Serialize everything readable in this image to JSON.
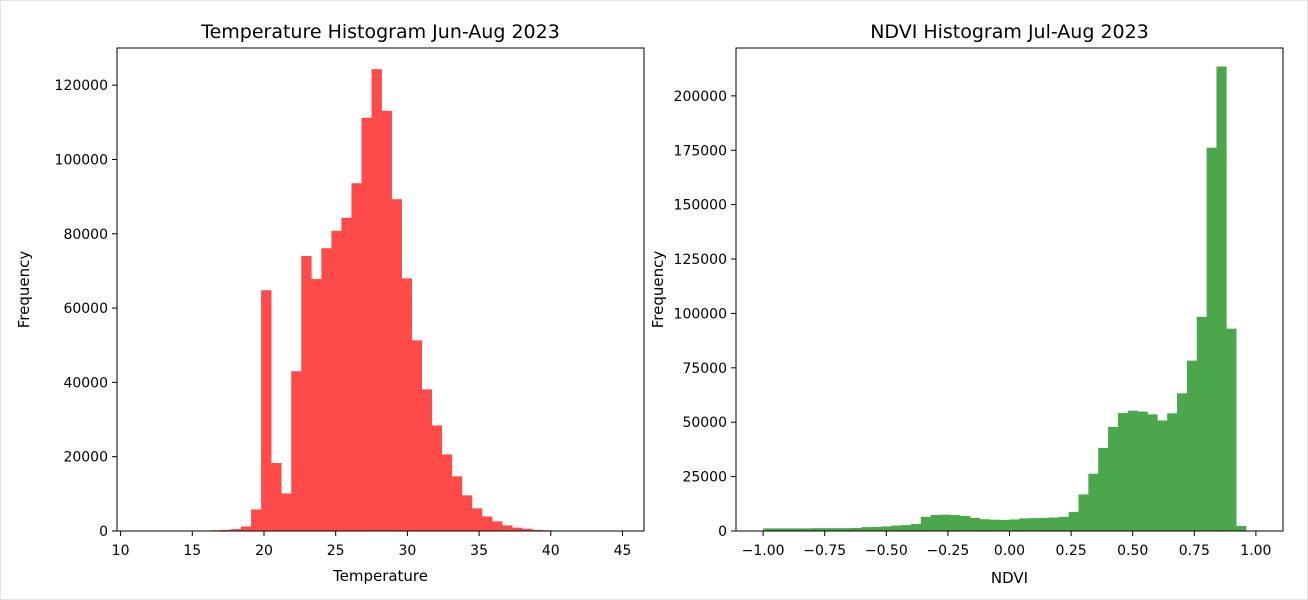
{
  "chart_data": [
    {
      "type": "bar",
      "title": "Temperature Histogram Jun-Aug 2023",
      "xlabel": "Temperature",
      "ylabel": "Frequency",
      "xlim": [
        9.75,
        46.5
      ],
      "ylim": [
        0,
        130000
      ],
      "xticks": [
        10,
        15,
        20,
        25,
        30,
        35,
        40,
        45
      ],
      "yticks": [
        0,
        20000,
        40000,
        60000,
        80000,
        100000,
        120000
      ],
      "color": "#ff4a4a",
      "bin_edges": [
        10.0,
        10.7,
        11.4,
        12.1,
        12.8,
        13.5,
        14.2,
        14.9,
        15.6,
        16.3,
        17.0,
        17.7,
        18.4,
        19.1,
        19.8,
        20.5,
        21.2,
        21.9,
        22.6,
        23.3,
        24.0,
        24.7,
        25.4,
        26.1,
        26.8,
        27.5,
        28.2,
        28.9,
        29.6,
        30.3,
        31.0,
        31.7,
        32.4,
        33.1,
        33.8,
        34.5,
        35.2,
        35.9,
        36.6,
        37.3,
        38.0,
        38.7,
        39.4,
        40.1,
        40.8,
        41.5,
        42.2,
        42.9,
        43.6,
        44.3,
        45.0
      ],
      "values": [
        0,
        0,
        0,
        0,
        0,
        0,
        0,
        0,
        0,
        200,
        300,
        500,
        1200,
        5800,
        64800,
        18300,
        10100,
        43000,
        74000,
        67800,
        76100,
        80800,
        84300,
        93600,
        111200,
        124300,
        113100,
        89300,
        68000,
        51300,
        38100,
        28400,
        20600,
        14700,
        9600,
        6100,
        3900,
        2600,
        1500,
        900,
        600,
        300,
        200,
        100,
        0,
        0,
        0,
        0,
        0,
        0
      ]
    },
    {
      "type": "bar",
      "title": "NDVI Histogram Jul-Aug 2023",
      "xlabel": "NDVI",
      "ylabel": "Frequency",
      "xlim": [
        -1.11,
        1.11
      ],
      "ylim": [
        0,
        222000
      ],
      "xticks": [
        -1.0,
        -0.75,
        -0.5,
        -0.25,
        0.0,
        0.25,
        0.5,
        0.75,
        1.0
      ],
      "xtick_labels": [
        "−1.00",
        "−0.75",
        "−0.50",
        "−0.25",
        "0.00",
        "0.25",
        "0.50",
        "0.75",
        "1.00"
      ],
      "yticks": [
        0,
        25000,
        50000,
        75000,
        100000,
        125000,
        150000,
        175000,
        200000
      ],
      "color": "#4ca64c",
      "bin_edges": [
        -1.0,
        -0.96,
        -0.92,
        -0.88,
        -0.84,
        -0.8,
        -0.76,
        -0.72,
        -0.68,
        -0.64,
        -0.6,
        -0.56,
        -0.52,
        -0.48,
        -0.44,
        -0.4,
        -0.36,
        -0.32,
        -0.28,
        -0.24,
        -0.2,
        -0.16,
        -0.12,
        -0.08,
        -0.04,
        0.0,
        0.04,
        0.08,
        0.12,
        0.16,
        0.2,
        0.24,
        0.28,
        0.32,
        0.36,
        0.4,
        0.44,
        0.48,
        0.52,
        0.56,
        0.6,
        0.64,
        0.68,
        0.72,
        0.76,
        0.8,
        0.84,
        0.88,
        0.92,
        0.96,
        1.0
      ],
      "values": [
        1200,
        1200,
        1200,
        1200,
        1200,
        1300,
        1300,
        1300,
        1300,
        1400,
        1800,
        1900,
        2100,
        2500,
        2700,
        3200,
        6500,
        7400,
        7500,
        7300,
        6900,
        6000,
        5400,
        5200,
        5100,
        5300,
        5800,
        5900,
        6000,
        6200,
        6500,
        8700,
        16800,
        26300,
        38200,
        47800,
        54200,
        55300,
        54900,
        53600,
        50800,
        54100,
        63300,
        78300,
        98400,
        176200,
        213500,
        93000,
        2300,
        0
      ]
    }
  ]
}
